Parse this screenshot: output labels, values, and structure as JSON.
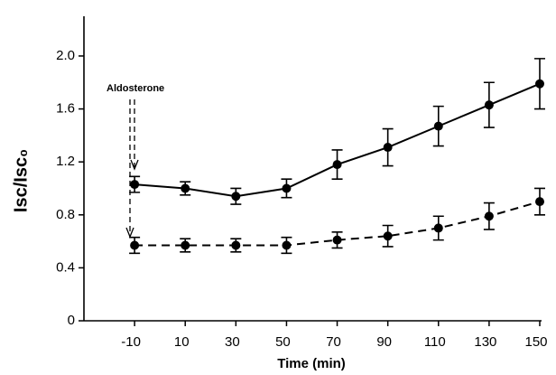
{
  "chart_data": {
    "type": "line",
    "xlabel": "Time (min)",
    "ylabel": "Isc/Isc₀",
    "annotation": "Aldosterone",
    "x": [
      -10,
      10,
      30,
      50,
      70,
      90,
      110,
      130,
      150
    ],
    "series": [
      {
        "color": "#000000",
        "linestyle": "solid",
        "values": [
          1.03,
          1.0,
          0.94,
          1.0,
          1.18,
          1.31,
          1.47,
          1.63,
          1.79
        ],
        "errors": [
          0.06,
          0.05,
          0.06,
          0.07,
          0.11,
          0.14,
          0.15,
          0.17,
          0.19
        ]
      },
      {
        "color": "#000000",
        "linestyle": "dashed",
        "values": [
          0.57,
          0.57,
          0.57,
          0.57,
          0.61,
          0.64,
          0.7,
          0.79,
          0.9
        ],
        "errors": [
          0.06,
          0.05,
          0.05,
          0.06,
          0.06,
          0.08,
          0.09,
          0.1,
          0.1
        ]
      }
    ],
    "xlim": [
      -30,
      150
    ],
    "xticks": [
      -10,
      10,
      30,
      50,
      70,
      90,
      110,
      130,
      150
    ],
    "ylim": [
      0,
      2.3
    ],
    "yticks": [
      0,
      0.4,
      0.8,
      1.2,
      1.6,
      {
        "value": 2,
        "label": "2.0"
      }
    ]
  }
}
